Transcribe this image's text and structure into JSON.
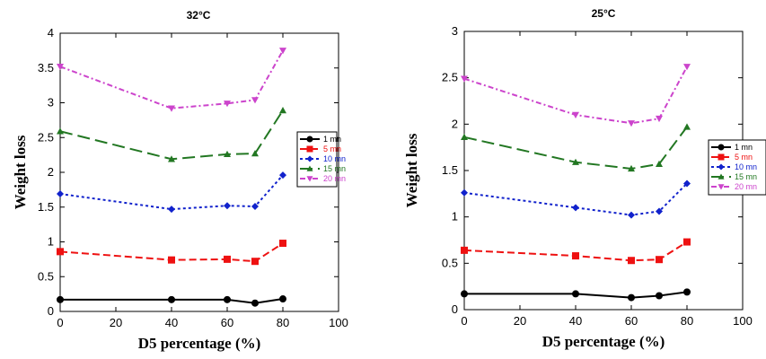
{
  "chart_data": [
    {
      "type": "line",
      "title": "32°C",
      "xlabel": "D5 percentage (%)",
      "ylabel": "Weight loss",
      "xlim": [
        0,
        100
      ],
      "ylim": [
        0,
        4
      ],
      "x_ticks": [
        "0",
        "20",
        "40",
        "60",
        "80",
        "100"
      ],
      "y_ticks": [
        "0",
        "0.5",
        "1",
        "1.5",
        "2",
        "2.5",
        "3",
        "3.5",
        "4"
      ],
      "x": [
        0,
        40,
        60,
        70,
        80
      ],
      "grid": false,
      "legend_position": "right",
      "series": [
        {
          "name": "1 mn",
          "color": "#000000",
          "marker": "circle",
          "dash": "solid",
          "values": [
            0.17,
            0.17,
            0.17,
            0.12,
            0.18
          ]
        },
        {
          "name": "5 mn",
          "color": "#ee1111",
          "marker": "square",
          "dash": "dashed",
          "values": [
            0.86,
            0.74,
            0.75,
            0.72,
            0.98
          ]
        },
        {
          "name": "10 mn",
          "color": "#1122cc",
          "marker": "diamond",
          "dash": "dotted",
          "values": [
            1.69,
            1.47,
            1.52,
            1.51,
            1.96
          ]
        },
        {
          "name": "15 mn",
          "color": "#227722",
          "marker": "triangle-up",
          "dash": "longdash",
          "values": [
            2.59,
            2.19,
            2.26,
            2.27,
            2.89
          ]
        },
        {
          "name": "20 mn",
          "color": "#cc44cc",
          "marker": "triangle-down",
          "dash": "dashdot",
          "values": [
            3.52,
            2.92,
            2.99,
            3.04,
            3.75
          ]
        }
      ]
    },
    {
      "type": "line",
      "title": "25°C",
      "xlabel": "D5 percentage (%)",
      "ylabel": "Weight loss",
      "xlim": [
        0,
        100
      ],
      "ylim": [
        0,
        3
      ],
      "x_ticks": [
        "0",
        "20",
        "40",
        "60",
        "80",
        "100"
      ],
      "y_ticks": [
        "0",
        "0.5",
        "1",
        "1.5",
        "2",
        "2.5",
        "3"
      ],
      "x": [
        0,
        40,
        60,
        70,
        80
      ],
      "grid": false,
      "legend_position": "right",
      "series": [
        {
          "name": "1 mn",
          "color": "#000000",
          "marker": "circle",
          "dash": "solid",
          "values": [
            0.17,
            0.17,
            0.13,
            0.15,
            0.19
          ]
        },
        {
          "name": "5 mn",
          "color": "#ee1111",
          "marker": "square",
          "dash": "dashed",
          "values": [
            0.64,
            0.58,
            0.53,
            0.54,
            0.73
          ]
        },
        {
          "name": "10 mn",
          "color": "#1122cc",
          "marker": "diamond",
          "dash": "dotted",
          "values": [
            1.26,
            1.1,
            1.02,
            1.06,
            1.36
          ]
        },
        {
          "name": "15 mn",
          "color": "#227722",
          "marker": "triangle-up",
          "dash": "longdash",
          "values": [
            1.86,
            1.59,
            1.52,
            1.57,
            1.97
          ]
        },
        {
          "name": "20 mn",
          "color": "#cc44cc",
          "marker": "triangle-down",
          "dash": "dashdot",
          "values": [
            2.49,
            2.1,
            2.01,
            2.06,
            2.62
          ]
        }
      ]
    }
  ]
}
